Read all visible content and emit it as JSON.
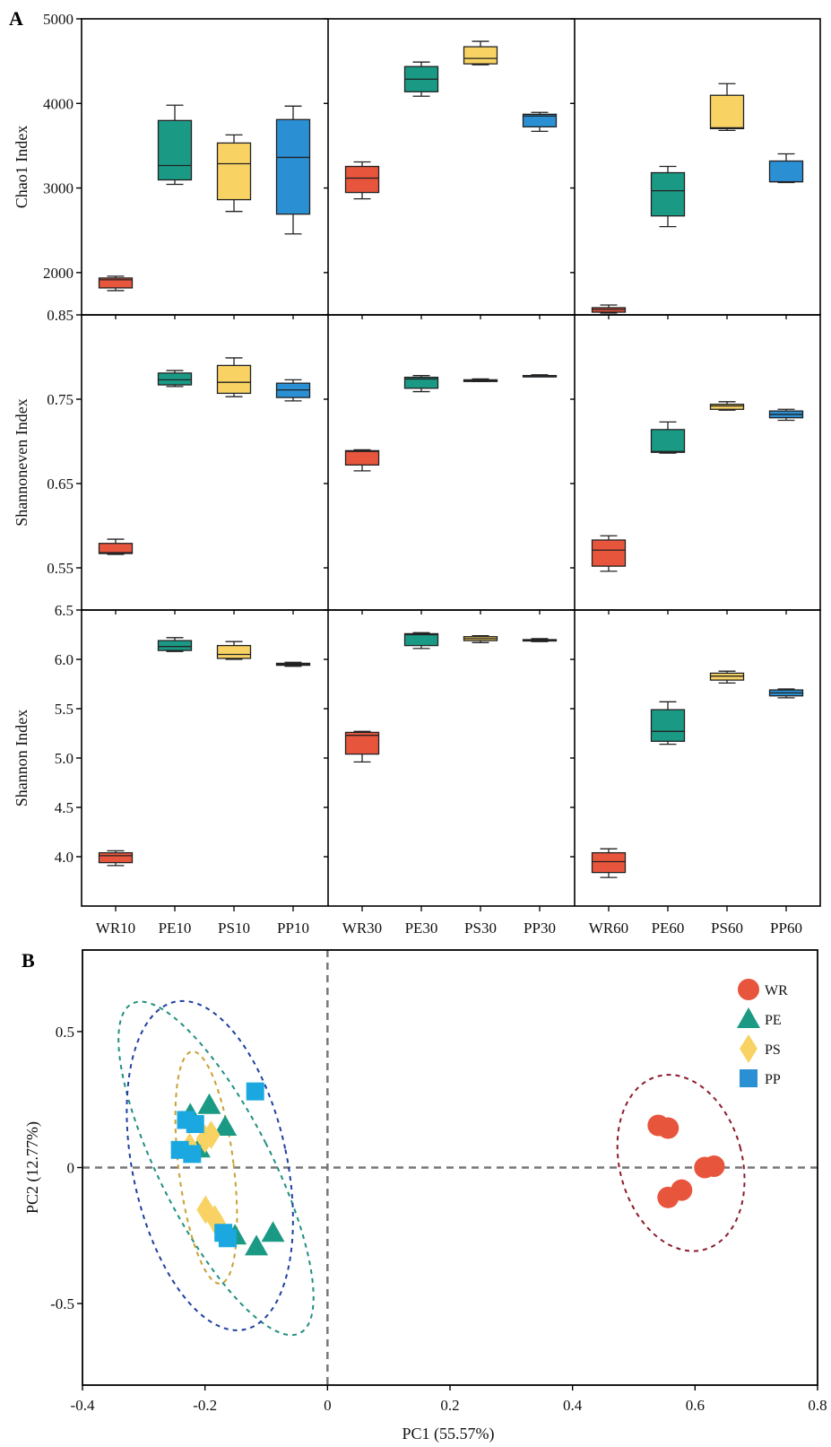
{
  "figure": {
    "panel_a_label": "A",
    "panel_b_label": "B"
  },
  "colors": {
    "WR": "#e8553d",
    "PE": "#1a9a85",
    "PS": "#f8d364",
    "PP": "#2b8fd4",
    "PP_points": "#1ba8e0",
    "ellipse_WR": "#8b1a2b",
    "ellipse_PE": "#1f8f7f",
    "ellipse_PS": "#c9a030",
    "ellipse_PP": "#1f3fa0",
    "reference_line": "#777777"
  },
  "chart_data": [
    {
      "type": "box",
      "panel": "A",
      "categories": [
        "WR10",
        "PE10",
        "PS10",
        "PP10",
        "WR30",
        "PE30",
        "PS30",
        "PP30",
        "WR60",
        "PE60",
        "PS60",
        "PP60"
      ],
      "category_groups": [
        "WR",
        "PE",
        "PS",
        "PP",
        "WR",
        "PE",
        "PS",
        "PP",
        "WR",
        "PE",
        "PS",
        "PP"
      ],
      "stat_order": [
        "min",
        "q1",
        "median",
        "q3",
        "max"
      ],
      "rows": [
        {
          "ylabel": "Chao1 Index",
          "ylim": [
            1500,
            5000
          ],
          "yticks": [
            2000,
            3000,
            4000,
            5000
          ],
          "ytick_labels": [
            "2000",
            "3000",
            "4000",
            "5000"
          ],
          "boxes": [
            [
              1787,
              1819,
              1915,
              1936,
              1957
            ],
            [
              3043,
              3096,
              3266,
              3798,
              3979
            ],
            [
              2723,
              2862,
              3287,
              3532,
              3628
            ],
            [
              2457,
              2691,
              3362,
              3809,
              3968
            ],
            [
              2872,
              2947,
              3117,
              3255,
              3308
            ],
            [
              4085,
              4138,
              4287,
              4436,
              4489
            ],
            [
              4457,
              4468,
              4532,
              4670,
              4734
            ],
            [
              3670,
              3723,
              3851,
              3872,
              3894
            ],
            [
              1521,
              1532,
              1564,
              1585,
              1617
            ],
            [
              2543,
              2670,
              2968,
              3181,
              3255
            ],
            [
              3681,
              3702,
              3713,
              4096,
              4234
            ],
            [
              3064,
              3074,
              3074,
              3319,
              3404
            ]
          ]
        },
        {
          "ylabel": "Shannoneven Index",
          "ylim": [
            0.5,
            0.85
          ],
          "yticks": [
            0.55,
            0.65,
            0.75,
            0.85
          ],
          "ytick_labels": [
            "0.55",
            "0.65",
            "0.75",
            "0.85"
          ],
          "boxes": [
            [
              0.566,
              0.567,
              0.568,
              0.579,
              0.584
            ],
            [
              0.765,
              0.767,
              0.773,
              0.781,
              0.784
            ],
            [
              0.753,
              0.757,
              0.77,
              0.79,
              0.799
            ],
            [
              0.748,
              0.752,
              0.761,
              0.769,
              0.773
            ],
            [
              0.665,
              0.672,
              0.688,
              0.689,
              0.69
            ],
            [
              0.759,
              0.763,
              0.774,
              0.776,
              0.778
            ],
            [
              0.771,
              0.771,
              0.772,
              0.773,
              0.774
            ],
            [
              0.777,
              0.777,
              0.778,
              0.778,
              0.779
            ],
            [
              0.546,
              0.552,
              0.571,
              0.583,
              0.588
            ],
            [
              0.686,
              0.687,
              0.688,
              0.714,
              0.723
            ],
            [
              0.737,
              0.738,
              0.742,
              0.744,
              0.747
            ],
            [
              0.725,
              0.728,
              0.732,
              0.736,
              0.738
            ]
          ]
        },
        {
          "ylabel": "Shannon Index",
          "ylim": [
            3.5,
            6.5
          ],
          "yticks": [
            4.0,
            4.5,
            5.0,
            5.5,
            6.0,
            6.5
          ],
          "ytick_labels": [
            "4.0",
            "4.5",
            "5.0",
            "5.5",
            "6.0",
            "6.5"
          ],
          "boxes": [
            [
              3.91,
              3.94,
              4.01,
              4.04,
              4.06
            ],
            [
              6.08,
              6.09,
              6.13,
              6.19,
              6.22
            ],
            [
              6.0,
              6.01,
              6.05,
              6.14,
              6.18
            ],
            [
              5.93,
              5.94,
              5.95,
              5.96,
              5.97
            ],
            [
              4.96,
              5.04,
              5.23,
              5.26,
              5.27
            ],
            [
              6.11,
              6.14,
              6.25,
              6.26,
              6.27
            ],
            [
              6.17,
              6.19,
              6.21,
              6.23,
              6.24
            ],
            [
              6.18,
              6.19,
              6.195,
              6.2,
              6.21
            ],
            [
              3.79,
              3.84,
              3.95,
              4.04,
              4.08
            ],
            [
              5.14,
              5.17,
              5.27,
              5.49,
              5.57
            ],
            [
              5.76,
              5.79,
              5.83,
              5.86,
              5.88
            ],
            [
              5.61,
              5.63,
              5.66,
              5.69,
              5.7
            ]
          ]
        }
      ]
    },
    {
      "type": "scatter",
      "panel": "B",
      "xlabel": "PC1 (55.57%)",
      "ylabel": "PC2 (12.77%)",
      "xlim": [
        -0.4,
        0.8
      ],
      "ylim": [
        -0.8,
        0.8
      ],
      "xticks": [
        -0.4,
        -0.2,
        0,
        0.2,
        0.4,
        0.6,
        0.8
      ],
      "xtick_labels": [
        "-0.4",
        "-0.2",
        "0",
        "0.2",
        "0.4",
        "0.6",
        "0.8"
      ],
      "yticks": [
        0.5,
        0,
        -0.5
      ],
      "ytick_labels": [
        "0.5",
        "0",
        "-0.5"
      ],
      "reference_lines": {
        "x": 0,
        "y": 0,
        "style": "dashed"
      },
      "legend_position": "top-right",
      "series": [
        {
          "name": "WR",
          "marker": "circle",
          "points": [
            [
              0.54,
              0.155
            ],
            [
              0.556,
              0.145
            ],
            [
              0.616,
              0.0
            ],
            [
              0.631,
              0.005
            ],
            [
              0.556,
              -0.11
            ],
            [
              0.578,
              -0.083
            ]
          ]
        },
        {
          "name": "PE",
          "marker": "triangle",
          "points": [
            [
              -0.224,
              0.195
            ],
            [
              -0.193,
              0.23
            ],
            [
              -0.167,
              0.15
            ],
            [
              -0.21,
              0.07
            ],
            [
              -0.089,
              -0.24
            ],
            [
              -0.116,
              -0.29
            ],
            [
              -0.151,
              -0.25
            ]
          ]
        },
        {
          "name": "PS",
          "marker": "diamond",
          "points": [
            [
              -0.19,
              0.12
            ],
            [
              -0.2,
              0.105
            ],
            [
              -0.225,
              0.075
            ],
            [
              -0.199,
              -0.155
            ],
            [
              -0.184,
              -0.19
            ],
            [
              -0.175,
              -0.225
            ]
          ]
        },
        {
          "name": "PP",
          "marker": "square",
          "points": [
            [
              -0.118,
              0.28
            ],
            [
              -0.231,
              0.175
            ],
            [
              -0.216,
              0.16
            ],
            [
              -0.241,
              0.065
            ],
            [
              -0.221,
              0.05
            ],
            [
              -0.17,
              -0.24
            ],
            [
              -0.163,
              -0.26
            ]
          ]
        }
      ],
      "confidence_ellipses": [
        {
          "group": "WR",
          "center": [
            0.577,
            0.017
          ],
          "semi_axis_pc1": 0.1,
          "semi_axis_pc2": 0.33,
          "tilt_deg": -15
        },
        {
          "group": "PE",
          "center": [
            -0.182,
            -0.003
          ],
          "semi_axis_pc1": 0.091,
          "semi_axis_pc2": 0.68,
          "tilt_deg": -27
        },
        {
          "group": "PS",
          "center": [
            -0.198,
            0.0
          ],
          "semi_axis_pc1": 0.045,
          "semi_axis_pc2": 0.43,
          "tilt_deg": -7
        },
        {
          "group": "PP",
          "center": [
            -0.192,
            0.007
          ],
          "semi_axis_pc1": 0.126,
          "semi_axis_pc2": 0.616,
          "tilt_deg": -12
        }
      ]
    }
  ]
}
